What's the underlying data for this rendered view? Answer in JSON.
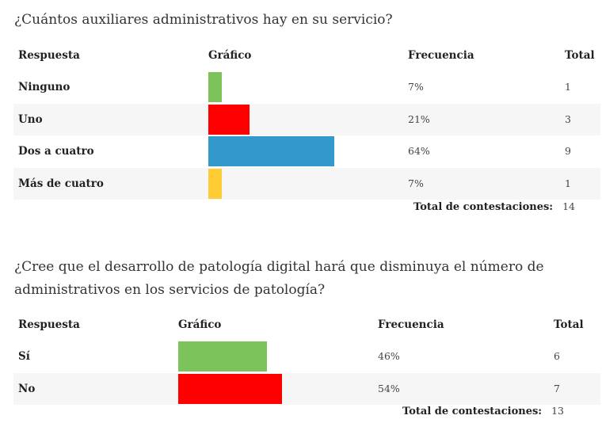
{
  "surveys": [
    {
      "question": "¿Cuántos auxiliares administrativos hay en su servicio?",
      "headers": {
        "respuesta": "Respuesta",
        "grafico": "Gráfico",
        "frecuencia": "Frecuencia",
        "total": "Total"
      },
      "rows": [
        {
          "label": "Ninguno",
          "frequency": "7%",
          "total": "1",
          "color": "#7dc35b"
        },
        {
          "label": "Uno",
          "frequency": "21%",
          "total": "3",
          "color": "#ff0000"
        },
        {
          "label": "Dos a cuatro",
          "frequency": "64%",
          "total": "9",
          "color": "#3399cc"
        },
        {
          "label": "Más de cuatro",
          "frequency": "7%",
          "total": "1",
          "color": "#ffcc33"
        }
      ],
      "total_label": "Total de contestaciones:",
      "total_value": "14"
    },
    {
      "question": "¿Cree que el desarrollo de patología digital hará que disminuya el número de administrativos en los servicios de patología?",
      "headers": {
        "respuesta": "Respuesta",
        "grafico": "Gráfico",
        "frecuencia": "Frecuencia",
        "total": "Total"
      },
      "rows": [
        {
          "label": "Sí",
          "frequency": "46%",
          "total": "6",
          "color": "#7dc35b"
        },
        {
          "label": "No",
          "frequency": "54%",
          "total": "7",
          "color": "#ff0000"
        }
      ],
      "total_label": "Total de contestaciones:",
      "total_value": "13"
    }
  ],
  "chart_data": [
    {
      "type": "bar",
      "title": "¿Cuántos auxiliares administrativos hay en su servicio?",
      "categories": [
        "Ninguno",
        "Uno",
        "Dos a cuatro",
        "Más de cuatro"
      ],
      "values": [
        7,
        21,
        64,
        7
      ],
      "counts": [
        1,
        3,
        9,
        1
      ],
      "xlim": [
        0,
        64
      ],
      "orientation": "horizontal"
    },
    {
      "type": "bar",
      "title": "¿Cree que el desarrollo de patología digital hará que disminuya el número de administrativos en los servicios de patología?",
      "categories": [
        "Sí",
        "No"
      ],
      "values": [
        46,
        54
      ],
      "counts": [
        6,
        7
      ],
      "xlim": [
        0,
        54
      ],
      "orientation": "horizontal"
    }
  ]
}
